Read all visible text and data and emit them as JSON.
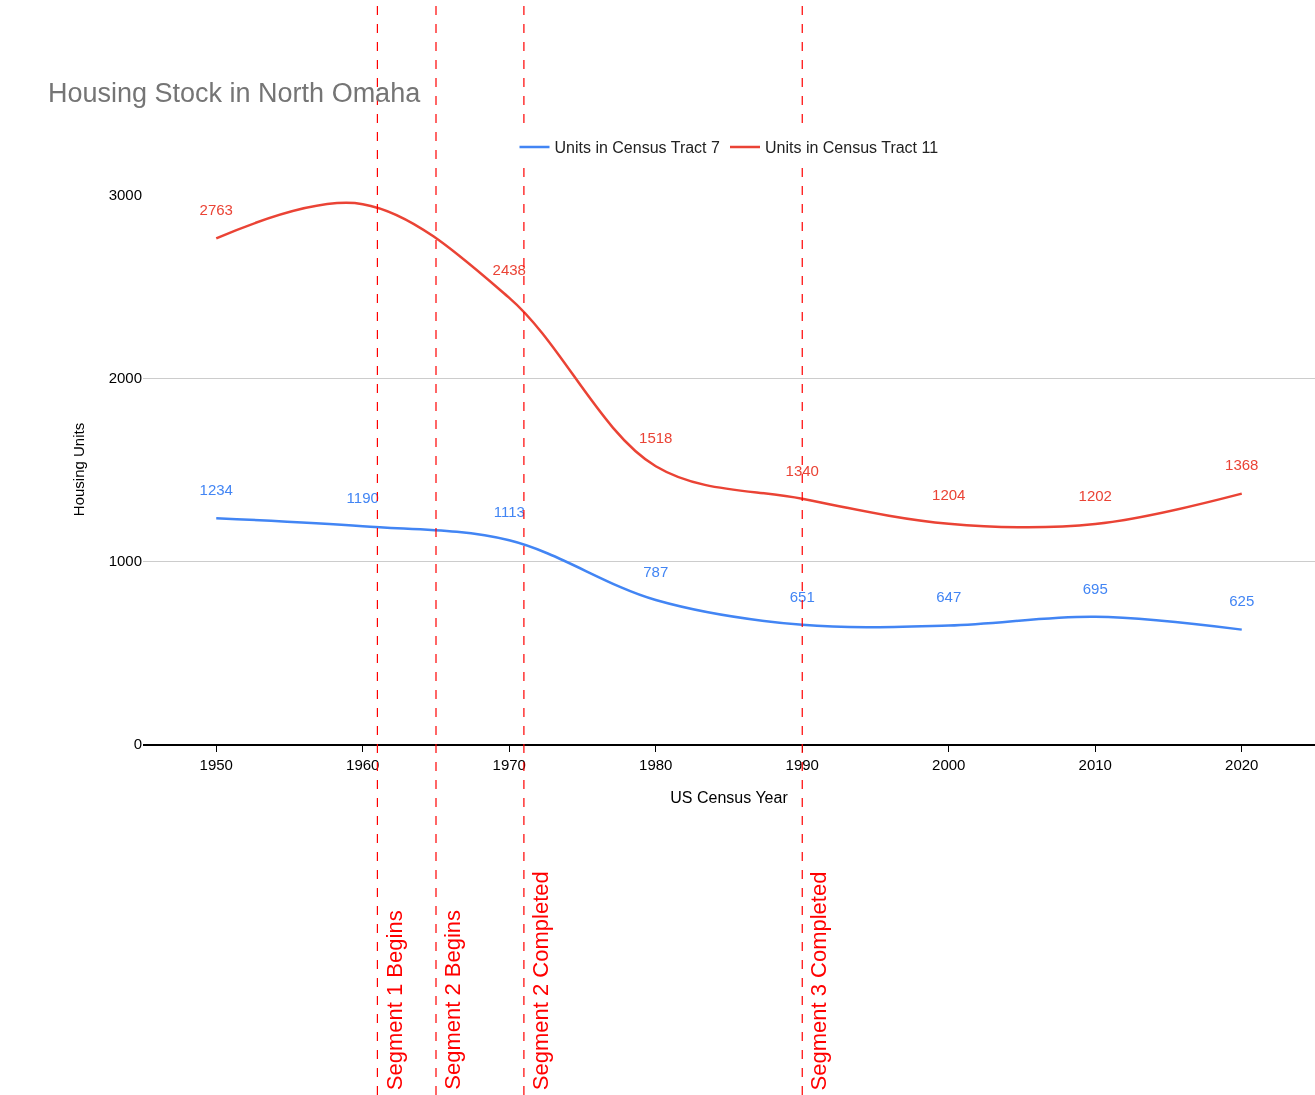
{
  "chart_data": {
    "type": "line",
    "title": "Housing Stock in North Omaha",
    "xlabel": "US Census Year",
    "ylabel": "Housing Units",
    "x": [
      1950,
      1960,
      1970,
      1980,
      1990,
      2000,
      2010,
      2020
    ],
    "series": [
      {
        "name": "Units in Census Tract 7",
        "color": "#4285f4",
        "values": [
          1234,
          1190,
          1113,
          787,
          651,
          647,
          695,
          625
        ],
        "value_labels": [
          "1234",
          "1190",
          "1113",
          "787",
          "651",
          "647",
          "695",
          "625"
        ]
      },
      {
        "name": "Units in Census Tract 11",
        "color": "#ea4335",
        "values": [
          2763,
          2950,
          2438,
          1518,
          1340,
          1204,
          1202,
          1368
        ],
        "value_labels": [
          "2763",
          null,
          "2438",
          "1518",
          "1340",
          "1204",
          "1202",
          "1368"
        ]
      }
    ],
    "xlim": [
      1945,
      2025
    ],
    "xticks": [
      1950,
      1960,
      1970,
      1980,
      1990,
      2000,
      2010,
      2020
    ],
    "ylim": [
      0,
      3000
    ],
    "yticks": [
      0,
      1000,
      2000,
      3000
    ],
    "grid": "y",
    "legend": "top",
    "marker": "none",
    "line_style": "solid",
    "ref_lines": [
      {
        "axis": "x",
        "value": 1961,
        "label": "Segment 1 Begins",
        "color": "#ff0000",
        "line_style": "dashed"
      },
      {
        "axis": "x",
        "value": 1965,
        "label": "Segment 2 Begins",
        "color": "#ff0000",
        "line_style": "dashed"
      },
      {
        "axis": "x",
        "value": 1971,
        "label": "Segment 2 Completed",
        "color": "#ff0000",
        "line_style": "dashed"
      },
      {
        "axis": "x",
        "value": 1990,
        "label": "Segment 3 Completed",
        "color": "#ff0000",
        "line_style": "dashed"
      }
    ]
  }
}
